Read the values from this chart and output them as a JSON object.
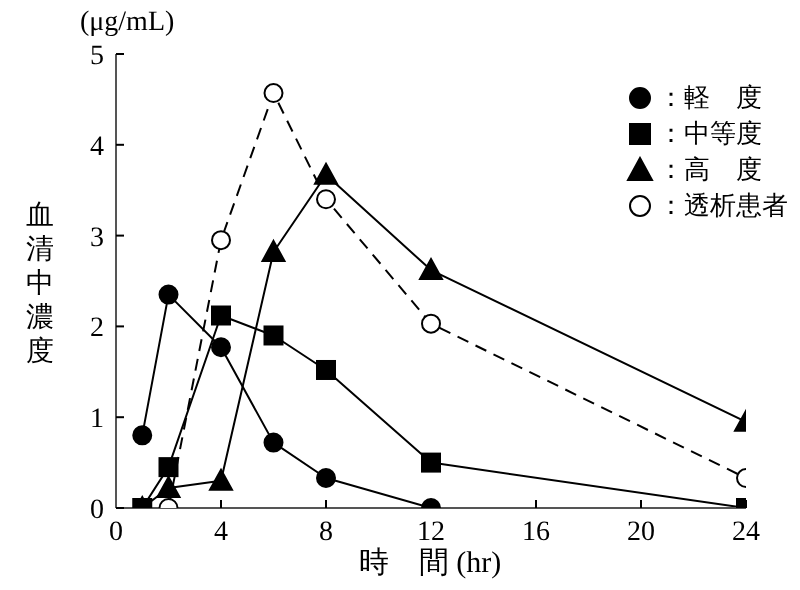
{
  "chart_data": {
    "type": "line",
    "xlabel": "時　間 (hr)",
    "ylabel": "血清中濃度",
    "annotations": [
      "(μg/mL)"
    ],
    "x": [
      1,
      2,
      4,
      6,
      8,
      12,
      24
    ],
    "xlim": [
      0,
      24
    ],
    "xticks": [
      0,
      4,
      8,
      12,
      16,
      20,
      24
    ],
    "ylim": [
      0,
      5
    ],
    "yticks": [
      0,
      1,
      2,
      3,
      4,
      5
    ],
    "grid": false,
    "legend": "top right",
    "series": [
      {
        "name": "：軽　度",
        "color": "#000000",
        "marker": "circle",
        "line_style": "solid",
        "values": [
          0.8,
          2.35,
          1.77,
          0.72,
          0.33,
          0,
          null
        ]
      },
      {
        "name": "：中等度",
        "color": "#000000",
        "marker": "square",
        "line_style": "solid",
        "values": [
          0,
          0.45,
          2.12,
          1.9,
          1.52,
          0.5,
          0
        ]
      },
      {
        "name": "：高　度",
        "color": "#000000",
        "marker": "triangle",
        "line_style": "solid",
        "values": [
          0,
          0.22,
          0.3,
          2.82,
          3.67,
          2.62,
          0.95
        ]
      },
      {
        "name": "：透析患者",
        "color": "#ffffff",
        "marker": "circle",
        "line_style": "dashed",
        "values": [
          null,
          0,
          2.95,
          4.57,
          3.4,
          2.03,
          0.33
        ]
      }
    ]
  }
}
